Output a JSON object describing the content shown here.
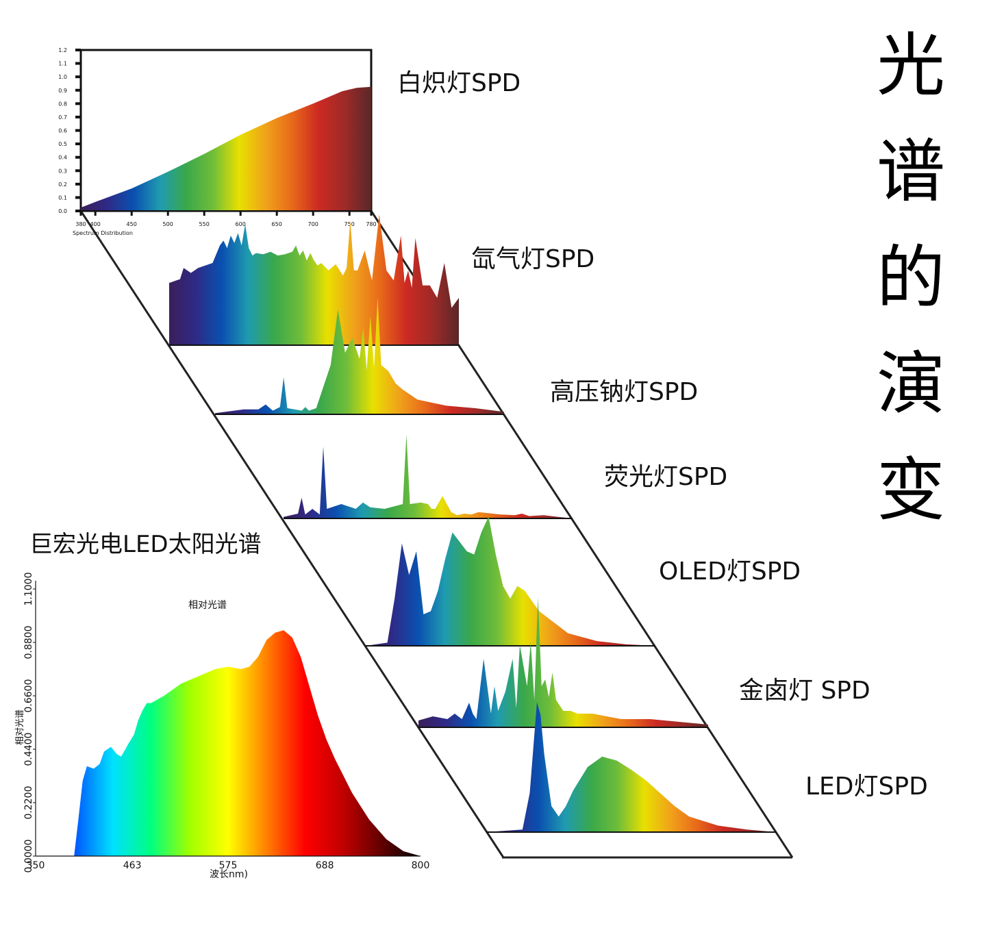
{
  "title_chars": [
    "光",
    "谱",
    "的",
    "演",
    "变"
  ],
  "colors": {
    "spectrum": [
      "#3a1f5a",
      "#2f2a86",
      "#0a50b0",
      "#1f9bb0",
      "#3aa84a",
      "#6fbd3a",
      "#e8e000",
      "#f0a21a",
      "#e86a1a",
      "#cc2a22",
      "#9e2a28",
      "#5a2828"
    ],
    "led_sun_spectrum": [
      "#1010a0",
      "#0055ff",
      "#00e0ff",
      "#00ff80",
      "#a0ff00",
      "#ffff00",
      "#ff8000",
      "#ff0000",
      "#c00000",
      "#600000",
      "#000000"
    ]
  },
  "chart_data": [
    {
      "type": "area",
      "label": "白炽灯SPD",
      "x_ticks": [
        "380",
        "400",
        "450",
        "500",
        "550",
        "600",
        "650",
        "700",
        "750",
        "780"
      ],
      "y_ticks": [
        "0.0",
        "0.1",
        "0.2",
        "0.3",
        "0.4",
        "0.5",
        "0.6",
        "0.7",
        "0.8",
        "0.9",
        "1.0",
        "1.1",
        "1.2"
      ],
      "xlabel": "Spectrum Distribution",
      "xlim": [
        380,
        780
      ],
      "ylim": [
        0,
        1.2
      ],
      "x": [
        380,
        400,
        450,
        500,
        550,
        600,
        650,
        700,
        740,
        760,
        780
      ],
      "y": [
        0.03,
        0.08,
        0.2,
        0.35,
        0.51,
        0.68,
        0.83,
        0.96,
        1.07,
        1.1,
        1.11
      ]
    },
    {
      "type": "area",
      "label": "氙气灯SPD",
      "x": [
        380,
        395,
        400,
        410,
        420,
        440,
        450,
        455,
        460,
        465,
        470,
        475,
        480,
        485,
        490,
        495,
        500,
        510,
        520,
        530,
        540,
        550,
        555,
        560,
        565,
        570,
        575,
        580,
        585,
        590,
        600,
        610,
        620,
        625,
        630,
        635,
        640,
        650,
        660,
        670,
        680,
        690,
        700,
        705,
        710,
        715,
        720,
        730,
        740,
        750,
        760,
        770,
        780
      ],
      "y": [
        0.5,
        0.53,
        0.62,
        0.58,
        0.62,
        0.66,
        0.8,
        0.84,
        0.78,
        0.88,
        0.82,
        0.9,
        0.8,
        0.97,
        0.78,
        0.72,
        0.74,
        0.73,
        0.75,
        0.72,
        0.73,
        0.75,
        0.8,
        0.72,
        0.76,
        0.68,
        0.74,
        0.68,
        0.64,
        0.66,
        0.6,
        0.65,
        0.56,
        0.62,
        1.0,
        0.6,
        0.6,
        0.76,
        0.52,
        1.05,
        0.6,
        0.52,
        0.88,
        0.5,
        0.6,
        0.46,
        0.86,
        0.48,
        0.48,
        0.38,
        0.66,
        0.3,
        0.38
      ]
    },
    {
      "type": "area",
      "label": "高压钠灯SPD",
      "x": [
        380,
        420,
        440,
        450,
        460,
        470,
        475,
        480,
        490,
        500,
        505,
        510,
        520,
        540,
        550,
        560,
        570,
        580,
        585,
        590,
        595,
        600,
        605,
        610,
        620,
        630,
        640,
        660,
        700,
        740,
        780
      ],
      "y": [
        0.01,
        0.04,
        0.04,
        0.08,
        0.03,
        0.06,
        0.3,
        0.05,
        0.04,
        0.03,
        0.06,
        0.03,
        0.05,
        0.4,
        0.85,
        0.5,
        0.62,
        0.45,
        0.7,
        0.36,
        0.8,
        0.38,
        0.95,
        0.4,
        0.35,
        0.25,
        0.2,
        0.12,
        0.07,
        0.05,
        0.02
      ]
    },
    {
      "type": "area",
      "label": "荧光灯SPD",
      "x": [
        380,
        400,
        405,
        410,
        420,
        430,
        435,
        440,
        460,
        480,
        490,
        500,
        520,
        545,
        550,
        555,
        570,
        580,
        585,
        590,
        600,
        612,
        620,
        630,
        640,
        650,
        680,
        700,
        710,
        720,
        740,
        760,
        780
      ],
      "y": [
        0.02,
        0.06,
        0.26,
        0.05,
        0.12,
        0.05,
        0.9,
        0.12,
        0.18,
        0.12,
        0.2,
        0.14,
        0.12,
        0.18,
        1.05,
        0.18,
        0.2,
        0.18,
        0.12,
        0.12,
        0.28,
        0.08,
        0.04,
        0.06,
        0.05,
        0.08,
        0.05,
        0.04,
        0.06,
        0.03,
        0.04,
        0.02,
        0.0
      ]
    },
    {
      "type": "area",
      "label": "OLED灯SPD",
      "x": [
        380,
        410,
        420,
        430,
        440,
        450,
        460,
        470,
        480,
        490,
        500,
        520,
        530,
        540,
        550,
        560,
        570,
        580,
        590,
        600,
        620,
        640,
        660,
        700,
        740,
        780
      ],
      "y": [
        0.0,
        0.02,
        0.3,
        0.65,
        0.45,
        0.6,
        0.2,
        0.22,
        0.35,
        0.55,
        0.72,
        0.6,
        0.58,
        0.72,
        0.82,
        0.58,
        0.38,
        0.3,
        0.38,
        0.35,
        0.22,
        0.15,
        0.08,
        0.03,
        0.01,
        0.0
      ]
    },
    {
      "type": "area",
      "label": "金卤灯 SPD",
      "x": [
        380,
        400,
        420,
        430,
        440,
        450,
        455,
        460,
        470,
        480,
        485,
        490,
        500,
        510,
        515,
        520,
        530,
        535,
        540,
        545,
        550,
        555,
        560,
        565,
        570,
        580,
        590,
        600,
        620,
        660,
        700,
        740,
        780
      ],
      "y": [
        0.05,
        0.08,
        0.06,
        0.1,
        0.06,
        0.18,
        0.1,
        0.06,
        0.5,
        0.1,
        0.3,
        0.12,
        0.26,
        0.5,
        0.14,
        0.6,
        0.3,
        0.62,
        0.2,
        0.95,
        0.3,
        0.35,
        0.22,
        0.4,
        0.2,
        0.12,
        0.12,
        0.1,
        0.1,
        0.06,
        0.06,
        0.04,
        0.02
      ]
    },
    {
      "type": "area",
      "label": "LED灯SPD",
      "x": [
        380,
        430,
        440,
        450,
        455,
        460,
        470,
        480,
        490,
        500,
        520,
        540,
        560,
        580,
        600,
        620,
        640,
        660,
        700,
        740,
        780
      ],
      "y": [
        0.0,
        0.02,
        0.3,
        1.0,
        0.9,
        0.6,
        0.2,
        0.12,
        0.2,
        0.32,
        0.5,
        0.58,
        0.55,
        0.48,
        0.4,
        0.3,
        0.2,
        0.12,
        0.05,
        0.02,
        0.0
      ]
    },
    {
      "type": "area",
      "title": "巨宏光电LED太阳光谱",
      "subtitle": "相对光谱",
      "xlabel": "波长nm)",
      "ylabel": "相对光谱",
      "x_ticks": [
        "350",
        "463",
        "575",
        "688",
        "800"
      ],
      "y_ticks": [
        "0.0000",
        "0.2200",
        "0.4400",
        "0.6600",
        "0.8800",
        "1.1000"
      ],
      "xlim": [
        350,
        800
      ],
      "ylim": [
        0,
        1.1
      ],
      "x": [
        350,
        395,
        400,
        405,
        410,
        418,
        425,
        430,
        438,
        445,
        450,
        455,
        458,
        465,
        470,
        475,
        480,
        485,
        490,
        500,
        520,
        540,
        560,
        575,
        590,
        600,
        610,
        620,
        630,
        640,
        650,
        660,
        670,
        680,
        690,
        700,
        720,
        740,
        760,
        780,
        800
      ],
      "y": [
        0.0,
        0.0,
        0.15,
        0.31,
        0.37,
        0.36,
        0.38,
        0.43,
        0.45,
        0.42,
        0.41,
        0.44,
        0.46,
        0.5,
        0.56,
        0.6,
        0.63,
        0.63,
        0.64,
        0.66,
        0.71,
        0.74,
        0.77,
        0.78,
        0.77,
        0.78,
        0.82,
        0.89,
        0.92,
        0.93,
        0.9,
        0.82,
        0.7,
        0.58,
        0.48,
        0.4,
        0.26,
        0.15,
        0.07,
        0.02,
        0.0
      ]
    }
  ]
}
